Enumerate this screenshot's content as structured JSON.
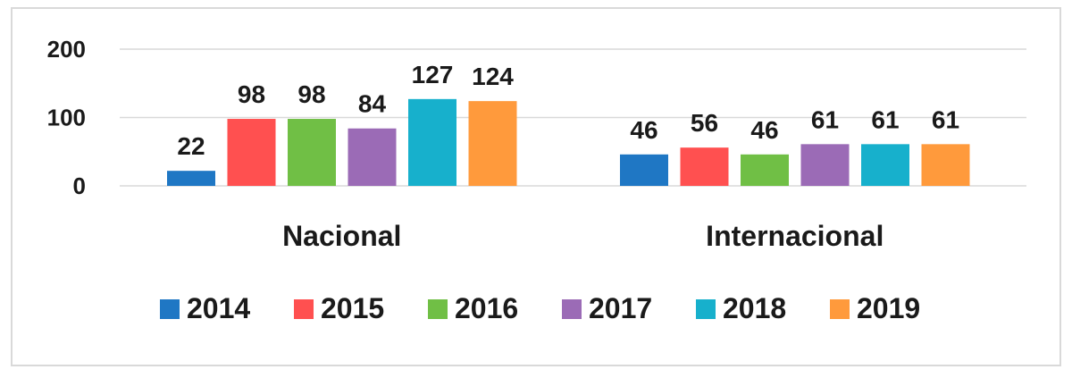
{
  "chart_data": {
    "type": "bar",
    "categories": [
      "Nacional",
      "Internacional"
    ],
    "series": [
      {
        "name": "2014",
        "color": "#1f77c4",
        "values": [
          22,
          46
        ]
      },
      {
        "name": "2015",
        "color": "#ff5050",
        "values": [
          98,
          56
        ]
      },
      {
        "name": "2016",
        "color": "#70bf45",
        "values": [
          98,
          46
        ]
      },
      {
        "name": "2017",
        "color": "#9b6bb6",
        "values": [
          84,
          61
        ]
      },
      {
        "name": "2018",
        "color": "#17b0cc",
        "values": [
          127,
          61
        ]
      },
      {
        "name": "2019",
        "color": "#ff9a3c",
        "values": [
          124,
          61
        ]
      }
    ],
    "y_ticks": [
      "0",
      "100",
      "200"
    ],
    "ylim": [
      0,
      200
    ],
    "grid": true,
    "data_labels": true,
    "legend_position": "bottom"
  }
}
